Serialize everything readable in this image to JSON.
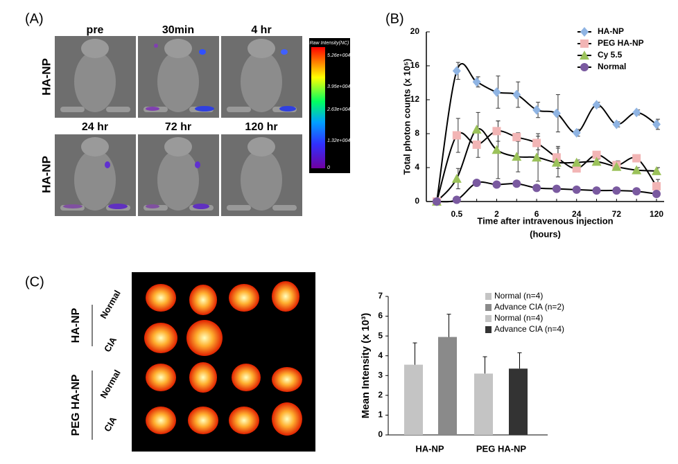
{
  "panels": {
    "a": {
      "label": "(A)",
      "time_labels": [
        "pre",
        "30min",
        "4 hr",
        "24 hr",
        "72 hr",
        "120 hr"
      ],
      "row_labels": [
        "HA-NP",
        "HA-NP"
      ],
      "colorbar": {
        "title": "Raw Intensity(NC)",
        "ticks": [
          "5.26e+004",
          "3.95e+004",
          "2.63e+004",
          "1.32e+004",
          "0"
        ]
      }
    },
    "b": {
      "label": "(B)"
    },
    "c": {
      "label": "(C)",
      "row_labels": [
        "HA-NP",
        "PEG HA-NP"
      ],
      "sub_labels": [
        "Normal",
        "CIA",
        "Normal",
        "CIA"
      ]
    }
  },
  "chart_data": [
    {
      "type": "line",
      "ylabel": "Total photon counts (x 10⁵)",
      "xlabel": [
        "Time after intravenous injection",
        "(hours)"
      ],
      "categories": [
        null,
        "0.5",
        null,
        "2",
        null,
        "6",
        null,
        "24",
        null,
        "72",
        null,
        "120"
      ],
      "ylim": [
        0,
        20
      ],
      "yticks": [
        0,
        4,
        8,
        12,
        16,
        20
      ],
      "legend": "top-right",
      "series": [
        {
          "name": "HA-NP",
          "color": "#8fb4e3",
          "marker": "diamond",
          "values": [
            0,
            15.4,
            14.1,
            12.9,
            12.6,
            10.8,
            10.4,
            8.1,
            11.4,
            9.1,
            10.5,
            9.1
          ],
          "errors": [
            0,
            1,
            0.6,
            1.9,
            1.5,
            0.9,
            2.2,
            0.4,
            0.3,
            0.3,
            0.3,
            0.6
          ]
        },
        {
          "name": "PEG HA-NP",
          "color": "#f2b5b5",
          "marker": "square",
          "values": [
            0,
            7.8,
            6.7,
            8.3,
            7.6,
            6.9,
            5.2,
            3.9,
            5.5,
            4.3,
            5.1,
            1.8
          ],
          "errors": [
            0,
            2,
            1.5,
            1.2,
            0.5,
            0.8,
            1.3,
            0.3,
            0.4,
            0.5,
            0.4,
            0.8
          ]
        },
        {
          "name": "Cy 5.5",
          "color": "#9bc25a",
          "marker": "triangle",
          "values": [
            0,
            2.7,
            8.5,
            6.1,
            5.3,
            5.2,
            4.6,
            4.6,
            4.7,
            4.1,
            3.7,
            3.6
          ],
          "errors": [
            0,
            1.2,
            2,
            3.4,
            1.8,
            2.8,
            1.7,
            0.3,
            0.3,
            0.3,
            0.3,
            0.4
          ]
        },
        {
          "name": "Normal",
          "color": "#7a5aa0",
          "marker": "circle",
          "values": [
            0,
            0.2,
            2.2,
            2,
            2.1,
            1.6,
            1.5,
            1.4,
            1.3,
            1.3,
            1.2,
            0.9
          ]
        }
      ]
    },
    {
      "type": "bar",
      "ylabel": "Mean Intensity (x 10³)",
      "categories": [
        "HA-NP",
        "PEG HA-NP"
      ],
      "ylim": [
        0,
        7
      ],
      "yticks": [
        0,
        1,
        2,
        3,
        4,
        5,
        6,
        7
      ],
      "legend": "top-right",
      "series": [
        {
          "name": "Normal (n=4)",
          "color": "#c4c4c4",
          "values": [
            3.55,
            null
          ],
          "errors": [
            1.1,
            null
          ]
        },
        {
          "name": "Advance CIA (n=2)",
          "color": "#8a8a8a",
          "values": [
            4.95,
            null
          ],
          "errors": [
            1.15,
            null
          ]
        },
        {
          "name": "Normal (n=4)",
          "color": "#c4c4c4",
          "values": [
            null,
            3.1
          ],
          "errors": [
            null,
            0.85
          ]
        },
        {
          "name": "Advance CIA (n=4)",
          "color": "#333333",
          "values": [
            null,
            3.35
          ],
          "errors": [
            null,
            0.8
          ]
        }
      ]
    }
  ]
}
